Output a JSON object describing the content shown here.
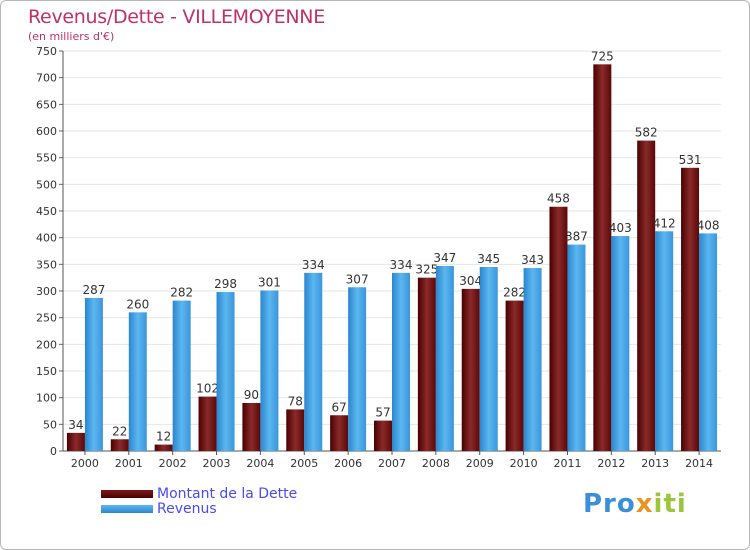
{
  "title": "Revenus/Dette - VILLEMOYENNE",
  "subtitle": "(en milliers d'€)",
  "logo_text": "Proxiti",
  "colors": {
    "debt": "#6b0d0d",
    "revenue": "#3d9be3",
    "title": "#c0306a",
    "legend_text": "#4a4aee",
    "grid": "#e6e6e6"
  },
  "chart_data": {
    "type": "bar",
    "title": "Revenus/Dette - VILLEMOYENNE",
    "subtitle": "(en milliers d'€)",
    "categories": [
      "2000",
      "2001",
      "2002",
      "2003",
      "2004",
      "2005",
      "2006",
      "2007",
      "2008",
      "2009",
      "2010",
      "2011",
      "2012",
      "2013",
      "2014"
    ],
    "series": [
      {
        "name": "Montant de la Dette",
        "values": [
          34,
          22,
          12,
          102,
          90,
          78,
          67,
          57,
          325,
          304,
          282,
          458,
          725,
          582,
          531
        ]
      },
      {
        "name": "Revenus",
        "values": [
          287,
          260,
          282,
          298,
          301,
          334,
          307,
          334,
          347,
          345,
          343,
          387,
          403,
          412,
          408
        ]
      }
    ],
    "ylim": [
      0,
      750
    ],
    "yticks": [
      0,
      50,
      100,
      150,
      200,
      250,
      300,
      350,
      400,
      450,
      500,
      550,
      600,
      650,
      700,
      750
    ],
    "grid": true,
    "legend": "bottom-left"
  }
}
